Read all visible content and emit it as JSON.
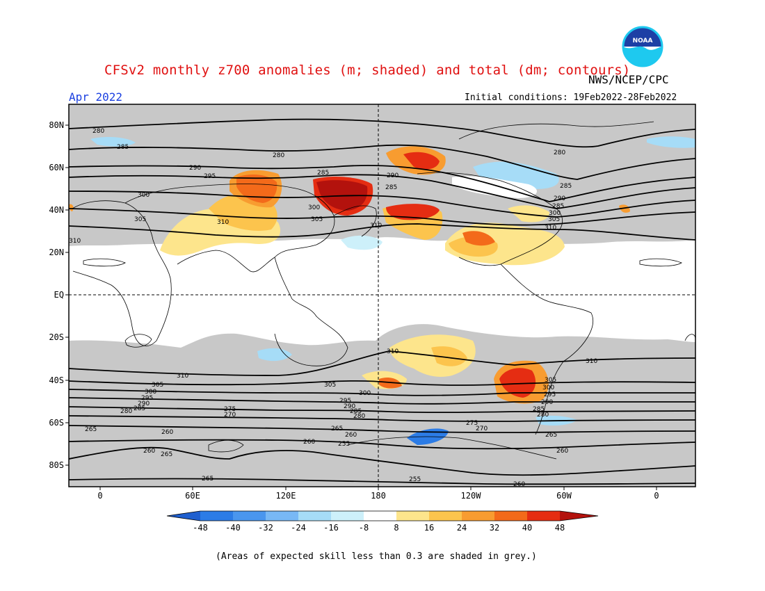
{
  "header": {
    "title": "CFSv2 monthly z700 anomalies (m; shaded) and total (dm; contours)",
    "agency": "NWS/NCEP/CPC",
    "month": "Apr 2022",
    "initial_conditions": "Initial conditions: 19Feb2022-28Feb2022"
  },
  "logo": {
    "text": "NOAA",
    "name": "noaa-logo"
  },
  "map": {
    "lat_labels": [
      "80N",
      "60N",
      "40N",
      "20N",
      "EQ",
      "20S",
      "40S",
      "60S",
      "80S"
    ],
    "lon_labels": [
      "0",
      "60E",
      "120E",
      "180",
      "120W",
      "60W",
      "0"
    ],
    "skill_mask_color": "#c8c8c8",
    "contour_labels": [
      "280",
      "285",
      "290",
      "295",
      "300",
      "305",
      "310",
      "275",
      "270",
      "265",
      "260",
      "255"
    ]
  },
  "colorbar": {
    "ticks": [
      "-48",
      "-40",
      "-32",
      "-24",
      "-16",
      "-8",
      "8",
      "16",
      "24",
      "32",
      "40",
      "48"
    ],
    "colors": [
      "#1f5fcf",
      "#2c7ce6",
      "#4a96ee",
      "#78b8f5",
      "#a6dcf7",
      "#cdf0fa",
      "#ffffff",
      "#fde58c",
      "#fcc44d",
      "#f89c30",
      "#f36a1a",
      "#e52d12",
      "#b3120d"
    ]
  },
  "footnote": "(Areas of expected skill less than 0.3 are shaded in grey.)"
}
